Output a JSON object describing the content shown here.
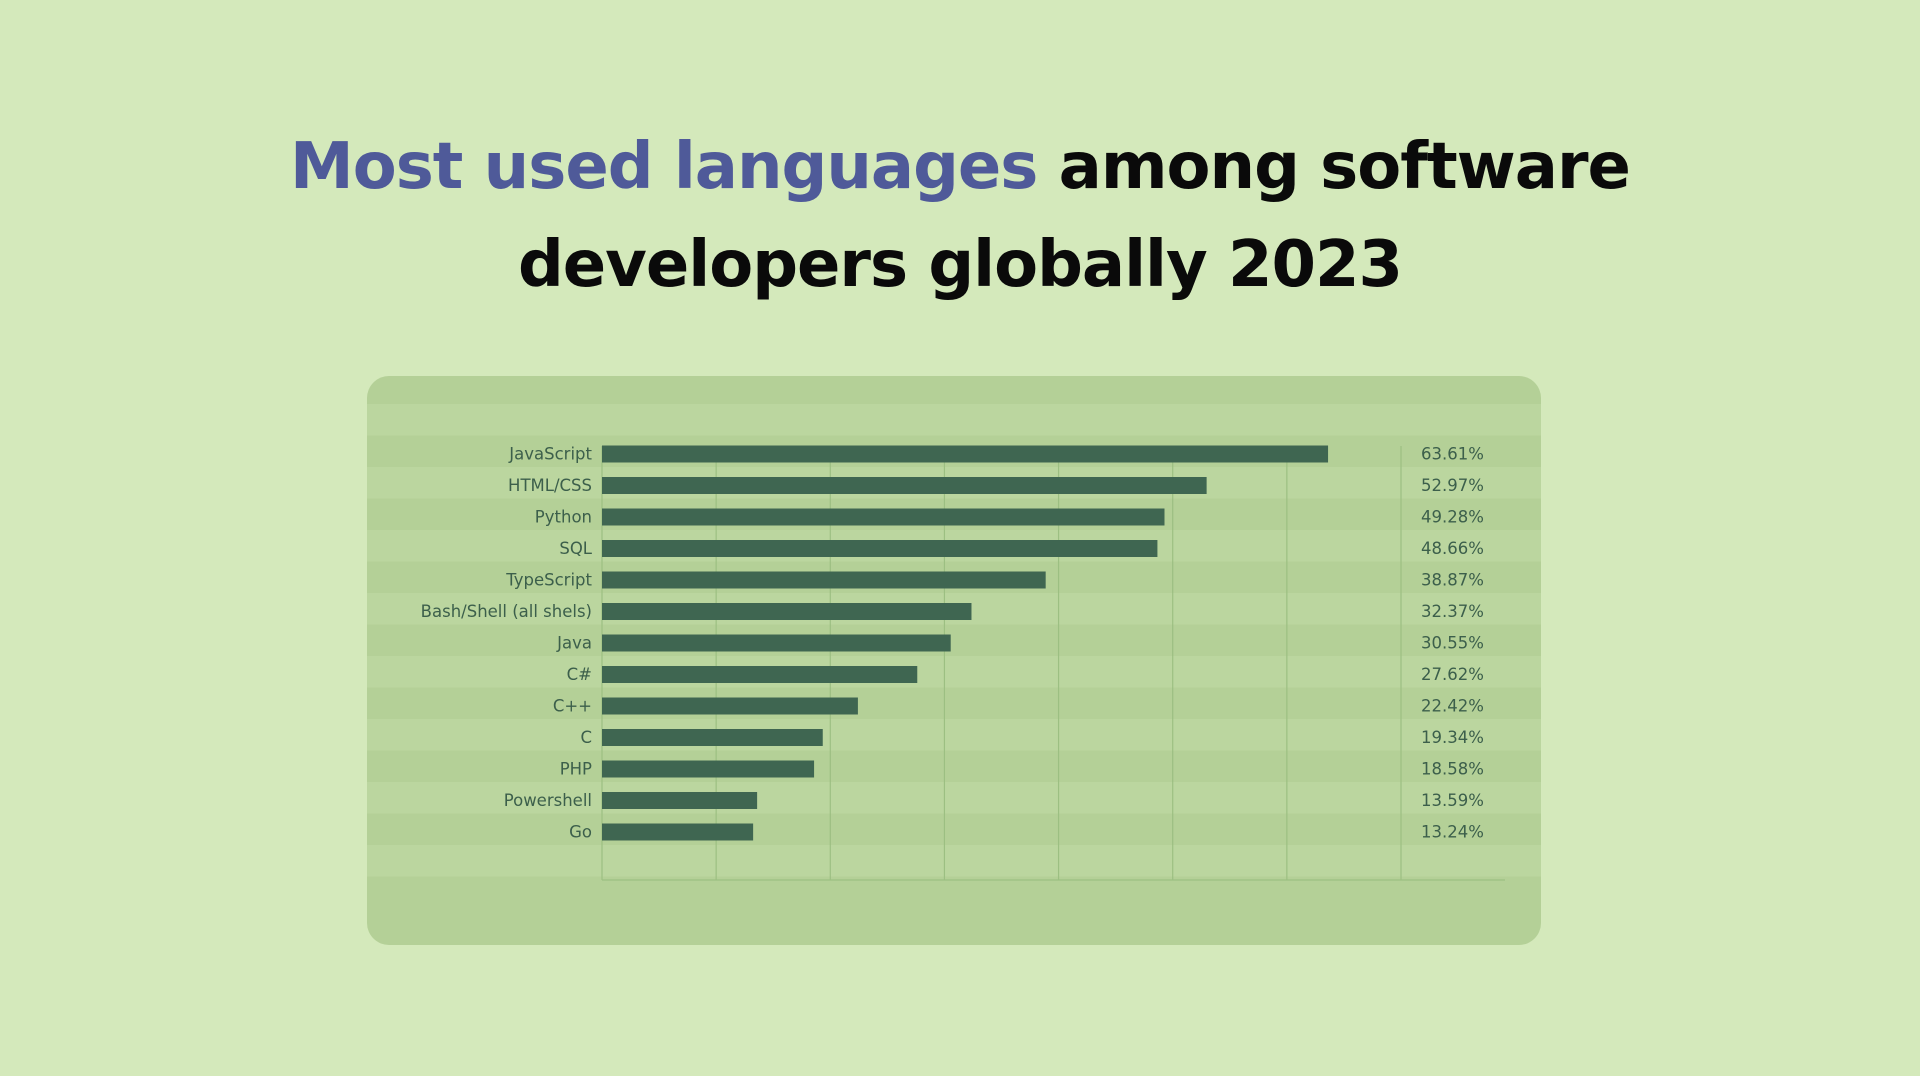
{
  "title": {
    "highlight": "Most used languages",
    "rest_line1": " among software",
    "line2": "developers globally 2023"
  },
  "colors": {
    "background": "#d4e9bb",
    "panel": "#b4d097",
    "bar": "#3f6651",
    "title_accent": "#4f5a99",
    "title_text": "#0a0a0a",
    "label_text": "#3c5f4b"
  },
  "chart_data": {
    "type": "bar",
    "orientation": "horizontal",
    "title": "Most used languages among software developers globally 2023",
    "categories": [
      "JavaScript",
      "HTML/CSS",
      "Python",
      "SQL",
      "TypeScript",
      "Bash/Shell (all shels)",
      "Java",
      "C#",
      "C++",
      "C",
      "PHP",
      "Powershell",
      "Go"
    ],
    "values": [
      63.61,
      52.97,
      49.28,
      48.66,
      38.87,
      32.37,
      30.55,
      27.62,
      22.42,
      19.34,
      18.58,
      13.59,
      13.24
    ],
    "value_labels": [
      "63.61%",
      "52.97%",
      "49.28%",
      "48.66%",
      "38.87%",
      "32.37%",
      "30.55%",
      "27.62%",
      "22.42%",
      "19.34%",
      "18.58%",
      "13.59%",
      "13.24%"
    ],
    "xlim": [
      0,
      70
    ],
    "grid": true,
    "xlabel": "",
    "ylabel": ""
  }
}
